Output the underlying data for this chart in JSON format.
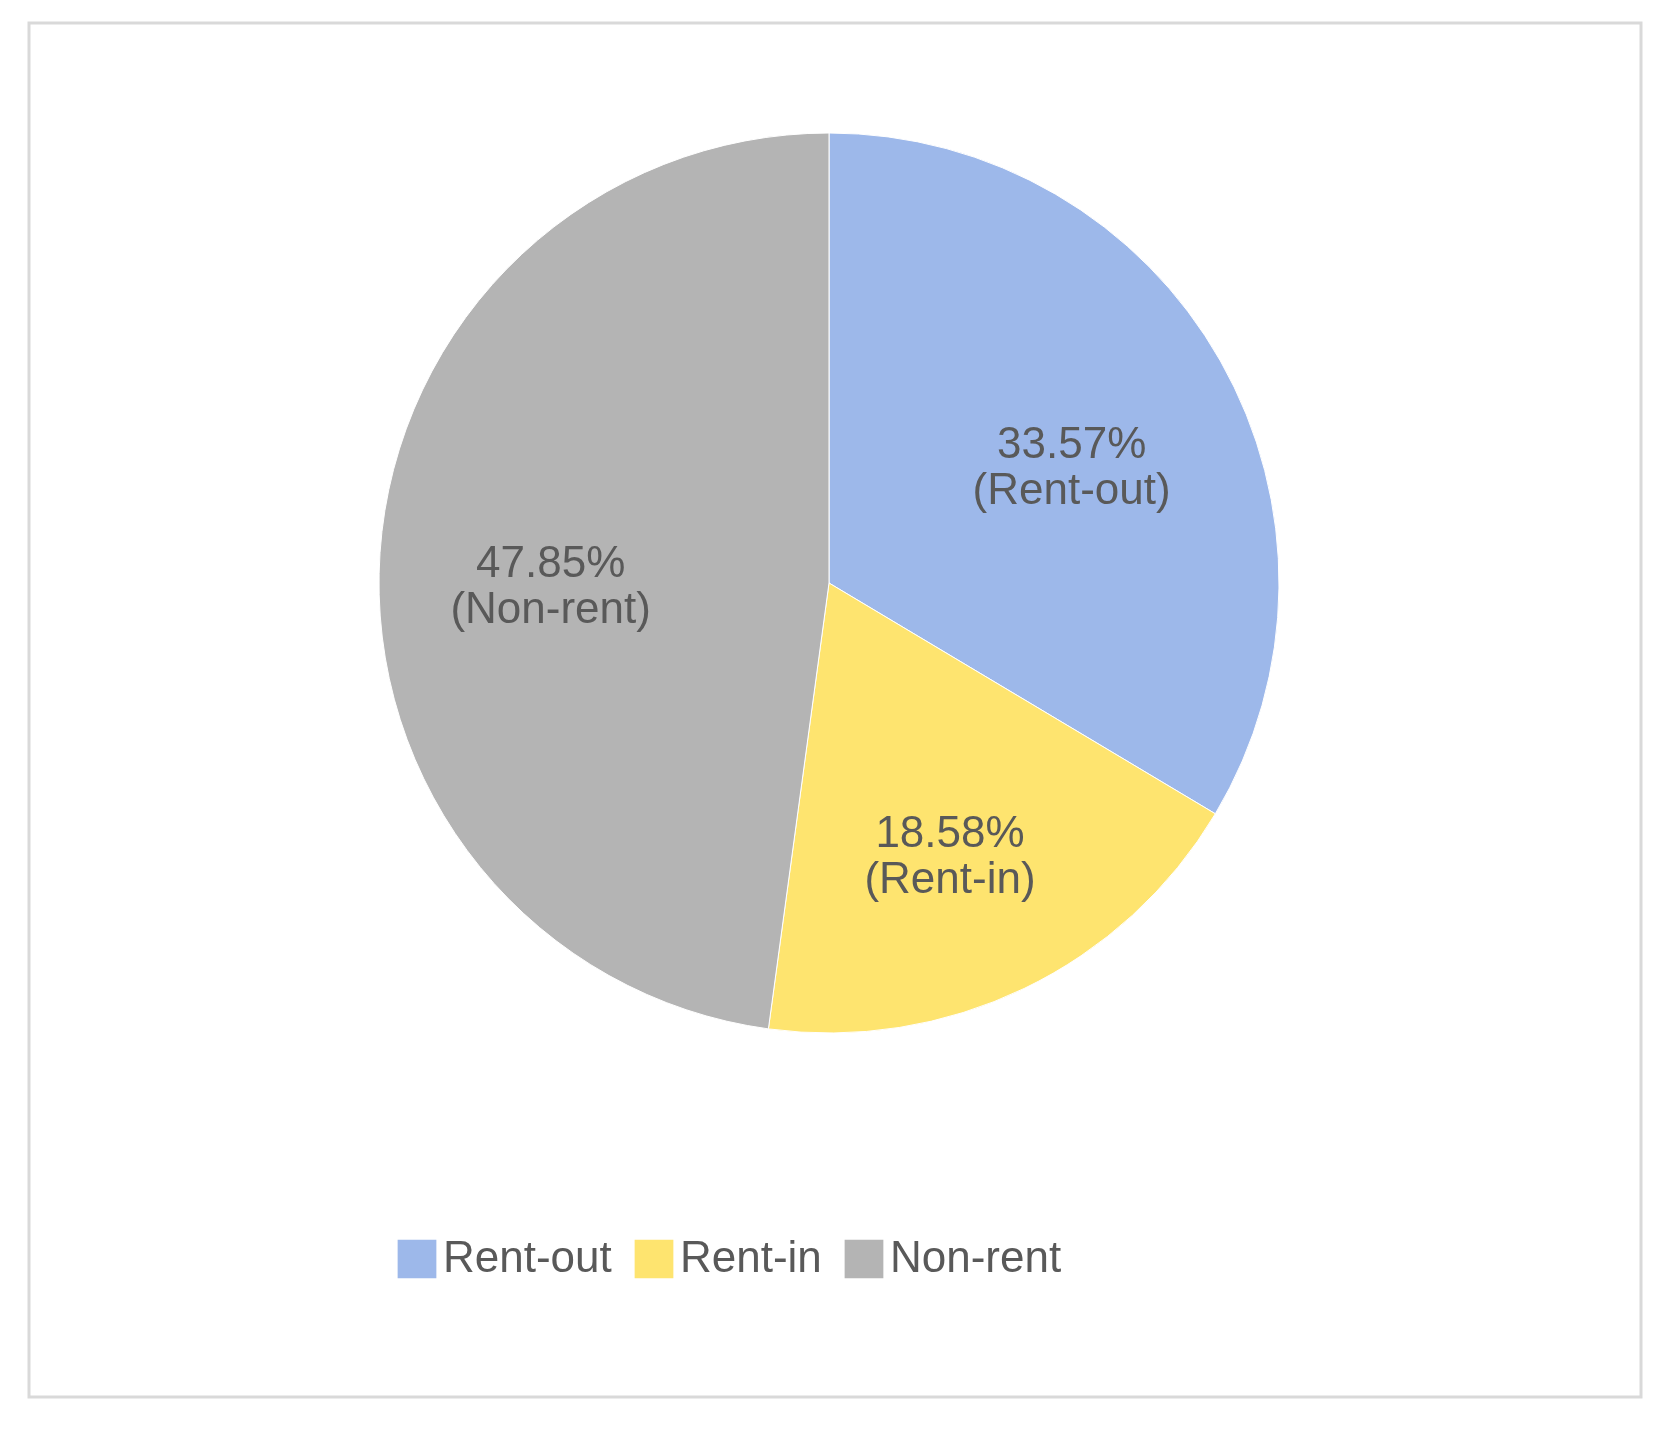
{
  "chart_data": {
    "type": "pie",
    "categories": [
      "Rent-out",
      "Rent-in",
      "Non-rent"
    ],
    "values": [
      33.57,
      18.58,
      47.85
    ],
    "colors": [
      "#9db8ea",
      "#fee46f",
      "#b4b4b4"
    ],
    "value_labels": [
      "33.57%\n(Rent-out)",
      "18.58%\n(Rent-in)",
      "47.85%\n(Non-rent)"
    ],
    "legend": "bottom"
  }
}
